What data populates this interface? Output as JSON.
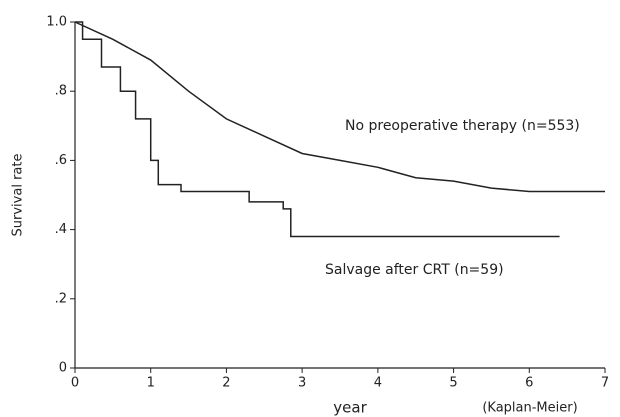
{
  "chart_data": {
    "type": "line",
    "ylabel": "Survival rate",
    "xlabel": "year",
    "annotation": "(Kaplan-Meier)",
    "xlim": [
      0,
      7
    ],
    "ylim": [
      0,
      1
    ],
    "xticks": [
      0,
      1,
      2,
      3,
      4,
      5,
      6,
      7
    ],
    "yticks": [
      0,
      {
        "value": 0.2,
        "label": ".2"
      },
      {
        "value": 0.4,
        "label": ".4"
      },
      {
        "value": 0.6,
        "label": ".6"
      },
      {
        "value": 0.8,
        "label": ".8"
      },
      {
        "value": 1,
        "label": "1.0"
      }
    ],
    "series": [
      {
        "name": "No preoperative therapy (n=553)",
        "color": "#222222",
        "x": [
          0,
          0.5,
          1,
          1.5,
          2,
          2.5,
          3,
          3.5,
          4,
          4.5,
          5,
          5.5,
          6,
          7
        ],
        "values": [
          1,
          0.95,
          0.89,
          0.8,
          0.72,
          0.67,
          0.62,
          0.6,
          0.58,
          0.55,
          0.54,
          0.52,
          0.51,
          0.51
        ]
      },
      {
        "name": "Salvage after CRT (n=59)",
        "color": "#222222",
        "x": [
          0,
          0.1,
          0.1,
          0.35,
          0.35,
          0.6,
          0.6,
          0.8,
          0.8,
          1.0,
          1.0,
          1.1,
          1.1,
          1.4,
          1.4,
          2.3,
          2.3,
          2.75,
          2.75,
          2.85,
          2.85,
          6.4
        ],
        "values": [
          1,
          1,
          0.95,
          0.95,
          0.87,
          0.87,
          0.8,
          0.8,
          0.72,
          0.72,
          0.6,
          0.6,
          0.53,
          0.53,
          0.51,
          0.51,
          0.48,
          0.48,
          0.46,
          0.46,
          0.38,
          0.38
        ]
      }
    ]
  }
}
